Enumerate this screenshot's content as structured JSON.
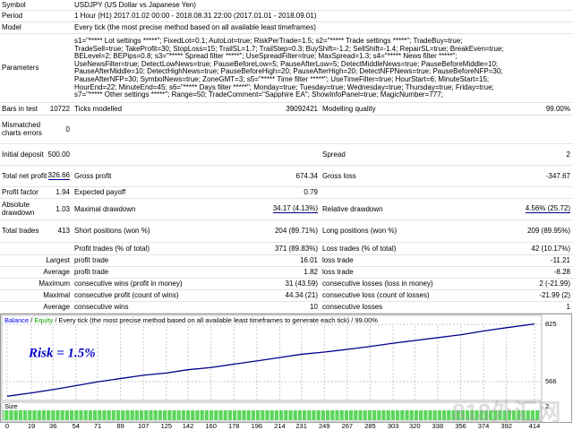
{
  "report": {
    "symbol": {
      "label": "Symbol",
      "value": "USDJPY (US Dollar vs Japanese Yen)"
    },
    "period": {
      "label": "Period",
      "value": "1 Hour (H1) 2017.01.02 00:00 - 2018.08.31 22:00 (2017.01.01 - 2018.09.01)"
    },
    "model": {
      "label": "Model",
      "value": "Every tick (the most precise method based on all available least timeframes)"
    },
    "parameters": {
      "label": "Parameters",
      "lines": [
        "s1=\"***** Lot settings *****\"; FixedLot=0.1; AutoLot=true; RiskPerTrade=1.5; s2=\"***** Trade settings *****\"; TradeBuy=true;",
        "TradeSell=true; TakeProfit=30; StopLoss=15; TrailSL=1.7; TrailStep=0.3; BuyShift=-1.2; SellShift=-1.4; RepairSL=true; BreakEven=true;",
        "BELevel=2; BEPips=0.8; s3=\"***** Spread filter *****\"; UseSpreadFilter=true; MaxSpread=1.3; s4=\"***** News filter *****\";",
        "UseNewsFilter=true; DetectLowNews=true; PauseBeforeLow=5; PauseAfterLow=5; DetectMiddleNews=true; PauseBeforeMiddle=10;",
        "PauseAfterMiddle=10; DetectHighNews=true; PauseBeforeHigh=20; PauseAfterHigh=20; DetectNFPNews=true; PauseBeforeNFP=30;",
        "PauseAfterNFP=30; SymbolNews=true; ZoneGMT=3; s5=\"***** Time filter *****\"; UseTimeFilter=true; HourStart=6; MinuteStart=15;",
        "HourEnd=22; MinuteEnd=45; s6=\"***** Days filter *****\"; Monday=true; Tuesday=true; Wednesday=true; Thursday=true; Friday=true;",
        "s7=\"***** Other settings *****\"; Range=50; TradeComment=\"Sapphire EA\"; ShowInfoPanel=true; MagicNumber=777;"
      ]
    },
    "stats": [
      {
        "label": "Bars in test",
        "value": "10722",
        "label2": "Ticks modelled",
        "value2": "39092421",
        "label3": "Modelling quality",
        "value3": "99.00%"
      },
      {
        "label": "Mismatched charts errors",
        "value": "0"
      },
      {
        "label": "Initial deposit",
        "value": "500.00",
        "label3": "Spread",
        "value3": "2"
      },
      {
        "label": "Total net profit",
        "value": "326.66",
        "label2": "Gross profit",
        "value2": "674.34",
        "label3": "Gross loss",
        "value3": "-347.67"
      },
      {
        "label": "Profit factor",
        "value": "1.94",
        "label2": "Expected payoff",
        "value2": "0.79"
      },
      {
        "label": "Absolute drawdown",
        "value": "1.03",
        "label2": "Maximal drawdown",
        "value2": "34.17 (4.13%)",
        "label3": "Relative drawdown",
        "value3": "4.56% (25.72)"
      },
      {
        "label": "Total trades",
        "value": "413",
        "label2": "Short positions (won %)",
        "value2": "204 (89.71%)",
        "label3": "Long positions (won %)",
        "value3": "209 (89.95%)"
      },
      {
        "label2": "Profit trades (% of total)",
        "value2": "371 (89.83%)",
        "label3": "Loss trades (% of total)",
        "value3": "42 (10.17%)"
      },
      {
        "prefix": "Largest",
        "label2": "profit trade",
        "value2": "16.01",
        "label3": "loss trade",
        "value3": "-11.21"
      },
      {
        "prefix": "Average",
        "label2": "profit trade",
        "value2": "1.82",
        "label3": "loss trade",
        "value3": "-8.28"
      },
      {
        "prefix": "Maximum",
        "label2": "consecutive wins (profit in money)",
        "value2": "31 (43.59)",
        "label3": "consecutive losses (loss in money)",
        "value3": "2 (-21.99)"
      },
      {
        "prefix": "Maximal",
        "label2": "consecutive profit (count of wins)",
        "value2": "44.34 (21)",
        "label3": "consecutive loss (count of losses)",
        "value3": "-21.99 (2)"
      },
      {
        "prefix": "Average",
        "label2": "consecutive wins",
        "value2": "10",
        "label3": "consecutive losses",
        "value3": "1"
      }
    ]
  },
  "chart_data": {
    "type": "line",
    "header": [
      {
        "text": "Balance",
        "color": "#0000ff"
      },
      {
        "text": " / "
      },
      {
        "text": "Equity",
        "color": "#00a000"
      },
      {
        "text": " / Every tick (the most precise method based on all available least timeframes to generate each tick) / 99.00%"
      }
    ],
    "annotation": "Risk = 1.5%",
    "size_label": "Size",
    "size_ticks": [
      2
    ],
    "color": "#00008b",
    "x": [
      0,
      19,
      36,
      54,
      71,
      89,
      107,
      125,
      142,
      160,
      178,
      196,
      214,
      231,
      249,
      267,
      285,
      303,
      320,
      338,
      356,
      374,
      392,
      414
    ],
    "values": [
      500,
      515,
      530,
      548,
      565,
      580,
      595,
      605,
      620,
      630,
      645,
      660,
      675,
      690,
      700,
      712,
      725,
      740,
      752,
      765,
      778,
      795,
      810,
      827
    ],
    "xlim": [
      0,
      414
    ],
    "xticks": [
      0,
      19,
      36,
      54,
      71,
      89,
      107,
      125,
      142,
      160,
      178,
      196,
      214,
      231,
      249,
      267,
      285,
      303,
      320,
      338,
      356,
      374,
      392,
      414
    ],
    "ylim": [
      481,
      866
    ],
    "yticks": [
      825,
      566
    ],
    "grid": true
  },
  "watermark": "818外汇网"
}
